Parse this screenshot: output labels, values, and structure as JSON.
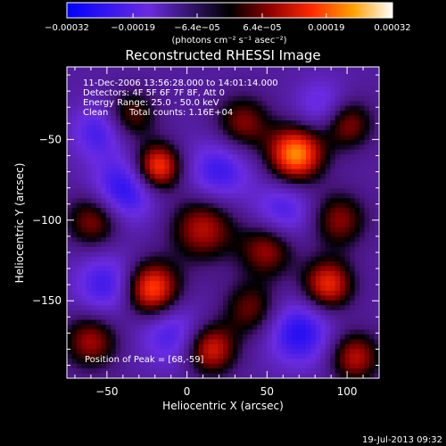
{
  "chart_data": {
    "type": "heatmap",
    "title": "Reconstructed RHESSI Image",
    "xlabel": "Heliocentric X (arcsec)",
    "ylabel": "Heliocentric Y (arcsec)",
    "xlim": [
      -75,
      120
    ],
    "ylim": [
      -198,
      -5
    ],
    "x_ticks": [
      {
        "value": -50,
        "label": "−50"
      },
      {
        "value": 0,
        "label": "0"
      },
      {
        "value": 50,
        "label": "50"
      },
      {
        "value": 100,
        "label": "100"
      }
    ],
    "y_ticks": [
      {
        "value": -50,
        "label": "−50"
      },
      {
        "value": -100,
        "label": "−100"
      },
      {
        "value": -150,
        "label": "−150"
      }
    ],
    "colorbar": {
      "range": [
        -0.00032,
        0.00032
      ],
      "ticks": [
        {
          "value": -0.00032,
          "label": "−0.00032"
        },
        {
          "value": -0.00019,
          "label": "−0.00019"
        },
        {
          "value": -6.4e-05,
          "label": "−6.4e−05"
        },
        {
          "value": 6.4e-05,
          "label": "6.4e−05"
        },
        {
          "value": 0.00019,
          "label": "0.00019"
        },
        {
          "value": 0.00032,
          "label": "0.00032"
        }
      ],
      "unit_label": "(photons cm⁻² s⁻¹ asec⁻²)"
    },
    "sources": [
      {
        "x": 68,
        "y": -59,
        "amp": 1.0,
        "s": 12
      },
      {
        "x": -18,
        "y": -67,
        "amp": 0.85,
        "s": 10
      },
      {
        "x": -22,
        "y": -143,
        "amp": 0.9,
        "s": 12
      },
      {
        "x": 88,
        "y": -140,
        "amp": 0.75,
        "s": 11
      },
      {
        "x": 10,
        "y": -105,
        "amp": 0.6,
        "s": 14
      },
      {
        "x": 50,
        "y": -118,
        "amp": 0.55,
        "s": 12
      },
      {
        "x": 95,
        "y": -100,
        "amp": 0.5,
        "s": 12
      },
      {
        "x": -60,
        "y": -175,
        "amp": 0.55,
        "s": 12
      },
      {
        "x": 15,
        "y": -180,
        "amp": 0.7,
        "s": 11
      },
      {
        "x": 105,
        "y": -185,
        "amp": 0.6,
        "s": 11
      },
      {
        "x": -58,
        "y": -100,
        "amp": 0.55,
        "s": 12
      },
      {
        "x": -35,
        "y": -35,
        "amp": 0.45,
        "s": 11
      },
      {
        "x": 35,
        "y": -40,
        "amp": 0.5,
        "s": 12
      },
      {
        "x": 100,
        "y": -40,
        "amp": 0.55,
        "s": 11
      },
      {
        "x": 40,
        "y": -155,
        "amp": 0.45,
        "s": 12
      },
      {
        "x": -40,
        "y": -82,
        "amp": -0.55,
        "s": 14
      },
      {
        "x": 20,
        "y": -70,
        "amp": -0.45,
        "s": 14
      },
      {
        "x": 70,
        "y": -170,
        "amp": -0.55,
        "s": 14
      },
      {
        "x": -50,
        "y": -140,
        "amp": -0.45,
        "s": 14
      },
      {
        "x": 60,
        "y": -95,
        "amp": -0.4,
        "s": 13
      },
      {
        "x": -10,
        "y": -170,
        "amp": -0.4,
        "s": 14
      },
      {
        "x": -55,
        "y": -45,
        "amp": -0.4,
        "s": 12
      },
      {
        "x": 85,
        "y": -30,
        "amp": -0.35,
        "s": 12
      }
    ]
  },
  "info": {
    "line1": "11-Dec-2006 13:56:28.000 to 14:01:14.000",
    "line2": "Detectors: 4F 5F 6F 7F 8F, Att 0",
    "line3": "Energy Range: 25.0 - 50.0 keV",
    "line4_method": "Clean",
    "line4_counts": "Total counts: 1.16E+04",
    "peak": "Position of Peak = [68,-59]"
  },
  "footer": {
    "timestamp": "19-Jul-2013 09:32"
  }
}
